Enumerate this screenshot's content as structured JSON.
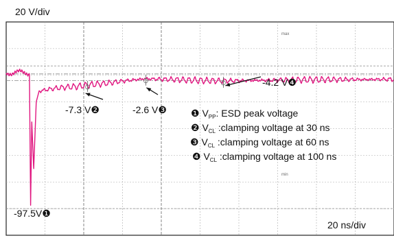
{
  "chart_data": {
    "type": "line",
    "title": "",
    "y_scale_label": "20 V/div",
    "x_scale_label": "20 ns/div",
    "x_units": "ns",
    "y_units": "V",
    "xlim": [
      -12,
      188
    ],
    "ylim": [
      -120,
      40
    ],
    "grid": true,
    "trace_color": "#e0157f",
    "series": [
      {
        "name": "",
        "x": [
          -12,
          -5,
          0,
          0.6,
          1.2,
          2.2,
          3.5,
          5,
          8,
          12,
          18,
          24,
          30,
          40,
          50,
          60,
          70,
          80,
          90,
          100,
          110,
          120,
          135,
          150,
          165,
          180,
          188
        ],
        "y": [
          2,
          2,
          0,
          -97.5,
          -35,
          -70,
          -20,
          -12,
          -11,
          -10,
          -9,
          -8.5,
          -7.3,
          -6,
          -4,
          -2.6,
          -3,
          -3.5,
          -4,
          -4.2,
          -4,
          -3.8,
          -3.5,
          -3.3,
          -3.2,
          -3.1,
          -3
        ]
      }
    ],
    "annotations": [
      {
        "text": "-97.5V",
        "marker": "❶",
        "x": 0.6,
        "y": -97.5
      },
      {
        "text": "-7.3 V",
        "marker": "❷",
        "x": 30,
        "y": -7.3
      },
      {
        "text": "-2.6 V",
        "marker": "❸",
        "x": 60,
        "y": -2.6
      },
      {
        "text": "-4.2 V",
        "marker": "❹",
        "x": 100,
        "y": -4.2
      }
    ],
    "legend": {
      "placement": "center-right",
      "items": [
        {
          "marker": "❶",
          "symbol": "V",
          "sub": "PP",
          "text": ":  ESD peak voltage"
        },
        {
          "marker": "❷",
          "symbol": "V",
          "sub": "CL",
          "text": " :clamping voltage at 30 ns"
        },
        {
          "marker": "❸",
          "symbol": "V",
          "sub": "CL",
          "text": " :clamping voltage at 60 ns"
        },
        {
          "marker": "❹",
          "symbol": "V",
          "sub": "CL",
          "text": " :clamping voltage at 100 ns"
        }
      ]
    },
    "cursor_labels": {
      "max": "max",
      "min": "min"
    }
  }
}
